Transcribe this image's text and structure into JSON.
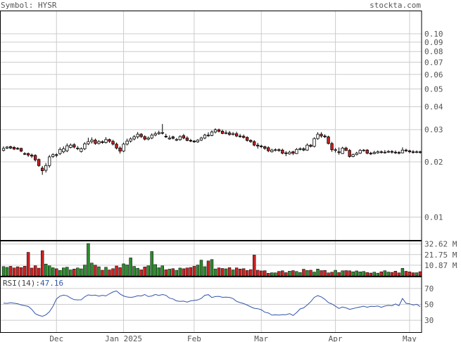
{
  "header": {
    "symbol_label": "Symbol: HYSR",
    "site": "stockta.com"
  },
  "colors": {
    "up": "#2d8a2d",
    "down": "#cc2222",
    "hollow": "#ffffff",
    "grid": "#cccccc",
    "rsi_line": "#3355aa",
    "frame": "#000000"
  },
  "chart_data": [
    {
      "type": "candlestick",
      "title": "HYSR",
      "y_scale": "log",
      "ylim": [
        0.0075,
        0.1
      ],
      "y_ticks": [
        {
          "value": 0.1,
          "label": "0.10"
        },
        {
          "value": 0.09,
          "label": "0.09"
        },
        {
          "value": 0.08,
          "label": "0.08"
        },
        {
          "value": 0.07,
          "label": "0.07"
        },
        {
          "value": 0.06,
          "label": "0.06"
        },
        {
          "value": 0.05,
          "label": "0.05"
        },
        {
          "value": 0.04,
          "label": "0.04"
        },
        {
          "value": 0.03,
          "label": "0.03"
        },
        {
          "value": 0.02,
          "label": "0.02"
        },
        {
          "value": 0.01,
          "label": "0.01"
        }
      ],
      "x_ticks": [
        {
          "index": 15,
          "label": "Dec"
        },
        {
          "index": 34,
          "label": "Jan 2025"
        },
        {
          "index": 54,
          "label": "Feb"
        },
        {
          "index": 73,
          "label": "Mar"
        },
        {
          "index": 94,
          "label": "Apr"
        },
        {
          "index": 115,
          "label": "May"
        }
      ],
      "close": [
        0.0237,
        0.0241,
        0.0238,
        0.0235,
        0.0236,
        0.0229,
        0.0221,
        0.0218,
        0.0215,
        0.0205,
        0.0191,
        0.0179,
        0.0191,
        0.0213,
        0.0219,
        0.0217,
        0.0234,
        0.0236,
        0.0245,
        0.0247,
        0.0241,
        0.0238,
        0.0236,
        0.0251,
        0.0258,
        0.0263,
        0.0252,
        0.0258,
        0.0255,
        0.0265,
        0.0259,
        0.025,
        0.0238,
        0.0229,
        0.025,
        0.026,
        0.0267,
        0.0274,
        0.0283,
        0.0275,
        0.0266,
        0.027,
        0.028,
        0.0285,
        0.0288,
        0.0289,
        0.0274,
        0.027,
        0.0269,
        0.0265,
        0.0275,
        0.027,
        0.0262,
        0.026,
        0.0257,
        0.0263,
        0.027,
        0.028,
        0.0279,
        0.0291,
        0.0299,
        0.0294,
        0.0286,
        0.0288,
        0.0282,
        0.0285,
        0.0277,
        0.0276,
        0.0272,
        0.0262,
        0.0258,
        0.0247,
        0.0244,
        0.0242,
        0.0237,
        0.023,
        0.0232,
        0.0233,
        0.0231,
        0.0223,
        0.0222,
        0.0226,
        0.0223,
        0.0234,
        0.0236,
        0.0232,
        0.0247,
        0.0243,
        0.0268,
        0.0283,
        0.0277,
        0.0274,
        0.0252,
        0.0233,
        0.0233,
        0.0225,
        0.0238,
        0.0231,
        0.0214,
        0.0219,
        0.0223,
        0.0231,
        0.0232,
        0.0223,
        0.0221,
        0.0225,
        0.0227,
        0.0226,
        0.0226,
        0.0228,
        0.0226,
        0.0225,
        0.0224,
        0.0232,
        0.023,
        0.0227,
        0.0226,
        0.0227,
        0.0226
      ],
      "open": [
        0.0231,
        0.0238,
        0.0242,
        0.024,
        0.0237,
        0.0237,
        0.0222,
        0.0222,
        0.0218,
        0.0217,
        0.0206,
        0.0185,
        0.018,
        0.0191,
        0.0214,
        0.0219,
        0.0222,
        0.0227,
        0.023,
        0.024,
        0.0248,
        0.0236,
        0.0228,
        0.0236,
        0.0251,
        0.0258,
        0.0263,
        0.0252,
        0.0258,
        0.0255,
        0.0265,
        0.0259,
        0.025,
        0.0238,
        0.0229,
        0.025,
        0.026,
        0.0267,
        0.0274,
        0.0283,
        0.0275,
        0.0266,
        0.027,
        0.028,
        0.0285,
        0.0289,
        0.0276,
        0.0267,
        0.0274,
        0.0263,
        0.0264,
        0.0278,
        0.027,
        0.0262,
        0.026,
        0.0257,
        0.0263,
        0.027,
        0.028,
        0.0279,
        0.0291,
        0.0299,
        0.0294,
        0.0286,
        0.0288,
        0.0282,
        0.0285,
        0.0277,
        0.0276,
        0.0272,
        0.0262,
        0.0258,
        0.0247,
        0.0244,
        0.0242,
        0.0239,
        0.0227,
        0.0231,
        0.0233,
        0.0232,
        0.0224,
        0.0221,
        0.0227,
        0.0222,
        0.0234,
        0.0236,
        0.0232,
        0.0247,
        0.0243,
        0.0268,
        0.0283,
        0.0277,
        0.0274,
        0.0252,
        0.0231,
        0.0227,
        0.0222,
        0.0238,
        0.0231,
        0.0214,
        0.0219,
        0.0223,
        0.0231,
        0.0232,
        0.0223,
        0.0222,
        0.0224,
        0.0227,
        0.0226,
        0.0226,
        0.0228,
        0.0226,
        0.0225,
        0.0224,
        0.0232,
        0.023,
        0.0227,
        0.0226,
        0.0227
      ],
      "high": [
        0.0243,
        0.0244,
        0.0245,
        0.0244,
        0.0241,
        0.0239,
        0.0226,
        0.0225,
        0.0222,
        0.022,
        0.0209,
        0.019,
        0.0197,
        0.0218,
        0.0223,
        0.0223,
        0.024,
        0.0243,
        0.0252,
        0.0252,
        0.0253,
        0.0244,
        0.024,
        0.0256,
        0.0271,
        0.0272,
        0.0268,
        0.0263,
        0.0262,
        0.0273,
        0.0268,
        0.0264,
        0.0255,
        0.0243,
        0.0255,
        0.0268,
        0.0272,
        0.028,
        0.0291,
        0.0287,
        0.0279,
        0.0275,
        0.0286,
        0.0292,
        0.0296,
        0.0322,
        0.0285,
        0.0279,
        0.0278,
        0.027,
        0.0279,
        0.0284,
        0.0276,
        0.0267,
        0.0263,
        0.0266,
        0.0274,
        0.0285,
        0.029,
        0.0297,
        0.0305,
        0.0304,
        0.03,
        0.0297,
        0.0295,
        0.0291,
        0.0292,
        0.0284,
        0.0282,
        0.0276,
        0.0266,
        0.0263,
        0.0254,
        0.0248,
        0.0245,
        0.0243,
        0.0236,
        0.0237,
        0.0237,
        0.0236,
        0.0229,
        0.023,
        0.023,
        0.0238,
        0.024,
        0.024,
        0.0252,
        0.025,
        0.0272,
        0.029,
        0.029,
        0.0283,
        0.0278,
        0.0257,
        0.0238,
        0.024,
        0.0242,
        0.0242,
        0.0235,
        0.0222,
        0.0227,
        0.0235,
        0.0235,
        0.0235,
        0.0227,
        0.023,
        0.0231,
        0.0231,
        0.0232,
        0.0232,
        0.0232,
        0.0231,
        0.0229,
        0.024,
        0.0236,
        0.0233,
        0.0232,
        0.0231,
        0.023
      ],
      "low": [
        0.0228,
        0.0235,
        0.0235,
        0.0232,
        0.0233,
        0.0226,
        0.0218,
        0.0213,
        0.021,
        0.0201,
        0.0188,
        0.017,
        0.0175,
        0.0186,
        0.021,
        0.0212,
        0.0218,
        0.0223,
        0.0226,
        0.0237,
        0.0237,
        0.0232,
        0.0225,
        0.0232,
        0.0247,
        0.0252,
        0.0248,
        0.0249,
        0.0251,
        0.0252,
        0.0254,
        0.0246,
        0.0234,
        0.0222,
        0.0226,
        0.0246,
        0.0255,
        0.0262,
        0.0268,
        0.027,
        0.0262,
        0.0262,
        0.0266,
        0.0276,
        0.0281,
        0.0282,
        0.027,
        0.0264,
        0.0265,
        0.026,
        0.0261,
        0.0266,
        0.0259,
        0.0256,
        0.0254,
        0.0254,
        0.026,
        0.0266,
        0.0274,
        0.0276,
        0.0286,
        0.0289,
        0.0283,
        0.0283,
        0.0278,
        0.0279,
        0.0273,
        0.0271,
        0.0268,
        0.0258,
        0.0254,
        0.0243,
        0.0236,
        0.0238,
        0.0233,
        0.0226,
        0.0225,
        0.0228,
        0.0227,
        0.022,
        0.0215,
        0.0219,
        0.0218,
        0.0221,
        0.0231,
        0.0229,
        0.023,
        0.024,
        0.024,
        0.0264,
        0.0271,
        0.027,
        0.0249,
        0.0227,
        0.0225,
        0.0219,
        0.0221,
        0.0229,
        0.0211,
        0.0212,
        0.0217,
        0.0221,
        0.0228,
        0.022,
        0.0218,
        0.022,
        0.0222,
        0.0222,
        0.0222,
        0.0224,
        0.0222,
        0.0221,
        0.022,
        0.0223,
        0.0226,
        0.0223,
        0.0222,
        0.0223,
        0.0222
      ]
    },
    {
      "type": "bar",
      "series_name": "volume",
      "unit": "M",
      "ylim": [
        0,
        36
      ],
      "y_ticks": [
        {
          "value": 32.62,
          "label": "32.62 M"
        },
        {
          "value": 21.75,
          "label": "21.75 M"
        },
        {
          "value": 10.87,
          "label": "10.87 M"
        }
      ],
      "values": [
        9.5,
        8.7,
        9.8,
        8.1,
        9.3,
        8.5,
        9.9,
        24.1,
        8.0,
        10.4,
        7.9,
        25.8,
        12.1,
        10.3,
        8.3,
        7.3,
        5.6,
        8.2,
        8.9,
        6.1,
        7.0,
        8.1,
        7.2,
        11.1,
        33.1,
        13.1,
        11.0,
        9.3,
        5.8,
        8.8,
        6.1,
        7.4,
        10.1,
        8.5,
        12.3,
        11.2,
        18.4,
        9.7,
        7.8,
        6.2,
        9.1,
        10.3,
        24.9,
        11.6,
        8.3,
        10.3,
        6.2,
        6.9,
        7.4,
        5.7,
        8.0,
        7.3,
        8.1,
        8.6,
        9.8,
        11.1,
        16.1,
        9.4,
        15.3,
        16.7,
        7.1,
        8.2,
        7.6,
        7.2,
        8.4,
        6.1,
        8.2,
        7.0,
        7.4,
        5.5,
        6.4,
        21.3,
        5.8,
        5.1,
        5.3,
        2.7,
        3.2,
        3.1,
        4.6,
        5.2,
        3.3,
        4.8,
        5.4,
        4.5,
        3.4,
        6.8,
        5.5,
        5.8,
        3.9,
        7.0,
        5.4,
        5.6,
        3.1,
        3.8,
        5.7,
        3.4,
        5.2,
        5.4,
        5.2,
        4.2,
        5.1,
        4.1,
        4.5,
        3.5,
        2.9,
        3.8,
        2.8,
        4.2,
        5.3,
        3.9,
        3.6,
        4.8,
        3.1,
        7.7,
        4.7,
        4.1,
        3.2,
        3.2,
        4.3
      ]
    },
    {
      "type": "line",
      "series_name": "RSI(14)",
      "label_prefix": "RSI(14):",
      "label_value": "47.16",
      "ylim": [
        15,
        85
      ],
      "y_ticks": [
        {
          "value": 70,
          "label": "70"
        },
        {
          "value": 50,
          "label": "50"
        },
        {
          "value": 30,
          "label": "30"
        }
      ],
      "values": [
        51.5,
        51.2,
        52.0,
        51.4,
        50.8,
        49.2,
        48.3,
        47.4,
        43.7,
        38.2,
        36.2,
        34.9,
        36.8,
        40.7,
        47.4,
        56.9,
        60.4,
        61.6,
        60.8,
        58.1,
        55.9,
        55.7,
        55.8,
        59.5,
        62.0,
        61.2,
        61.6,
        60.3,
        61.4,
        60.6,
        63.3,
        65.6,
        66.9,
        63.0,
        60.5,
        59.3,
        58.8,
        59.4,
        60.8,
        60.5,
        62.4,
        59.8,
        60.5,
        62.5,
        61.2,
        62.4,
        61.3,
        57.9,
        56.8,
        54.3,
        53.8,
        54.1,
        52.8,
        54.4,
        55.0,
        55.5,
        57.4,
        61.4,
        62.2,
        58.6,
        59.8,
        60.1,
        58.9,
        59.1,
        58.8,
        57.3,
        53.8,
        52.2,
        51.0,
        49.1,
        46.9,
        45.0,
        44.5,
        43.3,
        40.1,
        39.2,
        36.4,
        36.8,
        36.5,
        37.1,
        37.0,
        38.3,
        36.0,
        39.6,
        44.2,
        45.6,
        49.2,
        53.4,
        58.8,
        61.0,
        59.4,
        56.4,
        52.2,
        50.4,
        47.7,
        44.9,
        46.6,
        45.6,
        43.7,
        44.7,
        45.8,
        46.7,
        47.7,
        46.4,
        47.5,
        47.3,
        47.9,
        46.3,
        47.9,
        48.7,
        48.2,
        50.5,
        48.2,
        57.4,
        51.3,
        50.7,
        49.1,
        50.1,
        47.2
      ]
    }
  ]
}
